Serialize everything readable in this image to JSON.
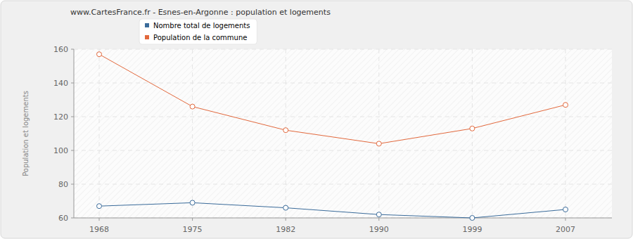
{
  "chart_data": {
    "type": "line",
    "title": "www.CartesFrance.fr - Esnes-en-Argonne : population et logements",
    "y_label": "Population et logements",
    "categories": [
      "1968",
      "1975",
      "1982",
      "1990",
      "1999",
      "2007"
    ],
    "series": [
      {
        "name": "Nombre total de logements",
        "color": "#3a6b9a",
        "marker": "circle",
        "values": [
          67,
          69,
          66,
          62,
          60,
          65
        ]
      },
      {
        "name": "Population de la commune",
        "color": "#e2683c",
        "marker": "circle",
        "values": [
          157,
          126,
          112,
          104,
          113,
          127
        ]
      }
    ],
    "ylim": [
      60,
      160
    ],
    "yticks": [
      60,
      80,
      100,
      120,
      140,
      160
    ],
    "grid": true,
    "legend": "top"
  }
}
